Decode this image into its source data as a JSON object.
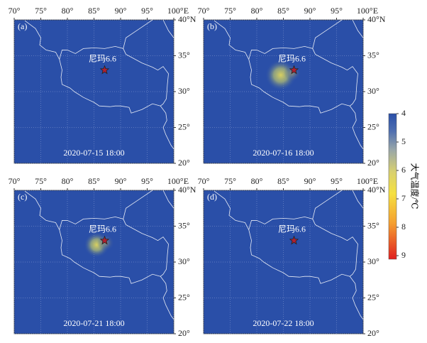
{
  "lon_labels": [
    "70°",
    "75°",
    "80°",
    "85°",
    "90°",
    "95°",
    "100°E"
  ],
  "lat_labels": [
    "40°N",
    "35°",
    "30°",
    "25°",
    "20°"
  ],
  "panels": [
    {
      "label": "(a)",
      "station": "尼玛6.6",
      "date": "2020-07-15 18:00"
    },
    {
      "label": "(b)",
      "station": "尼玛6.6",
      "date": "2020-07-16 18:00"
    },
    {
      "label": "(c)",
      "station": "尼玛6.6",
      "date": "2020-07-21 18:00"
    },
    {
      "label": "(d)",
      "station": "尼玛6.6",
      "date": "2020-07-22 18:00"
    }
  ],
  "colorbar": {
    "title": "大气温度/℃",
    "labels": [
      "4",
      "5",
      "6",
      "7",
      "8",
      "9"
    ]
  }
}
